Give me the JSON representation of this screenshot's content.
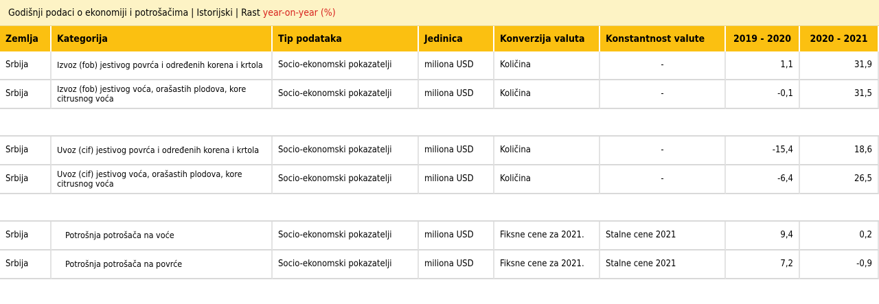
{
  "title": {
    "main": "Godišnji podaci o ekonomiji i potrošačima | Istorijski | Rast",
    "accent": "year-on-year (%)"
  },
  "colors": {
    "header_bg": "#fbc011",
    "title_bg": "#fdf3c5",
    "accent": "#d8231f"
  },
  "columns": [
    "Zemlja",
    "Kategorija",
    "Tip podataka",
    "Jedinica",
    "Konverzija valuta",
    "Konstantnost valute",
    "2019 - 2020",
    "2020 - 2021"
  ],
  "rows": [
    {
      "zemlja": "Srbija",
      "kategorija": "Izvoz (fob) jestivog povrća i određenih korena i krtola",
      "tip": "Socio-ekonomski pokazatelji",
      "jedinica": "miliona USD",
      "konverzija": "Količina",
      "konstantnost": "-",
      "y1": "1,1",
      "y2": "31,9"
    },
    {
      "zemlja": "Srbija",
      "kategorija": "Izvoz (fob) jestivog voća, orašastih plodova, kore citrusnog voća",
      "tip": "Socio-ekonomski pokazatelji",
      "jedinica": "miliona USD",
      "konverzija": "Količina",
      "konstantnost": "-",
      "y1": "-0,1",
      "y2": "31,5"
    },
    {
      "zemlja": "Srbija",
      "kategorija": "Uvoz (cif) jestivog povrća i određenih korena i krtola",
      "tip": "Socio-ekonomski pokazatelji",
      "jedinica": "miliona USD",
      "konverzija": "Količina",
      "konstantnost": "-",
      "y1": "-15,4",
      "y2": "18,6"
    },
    {
      "zemlja": "Srbija",
      "kategorija": "Uvoz (cif)  jestivog voća, orašastih plodova, kore citrusnog voća",
      "tip": "Socio-ekonomski pokazatelji",
      "jedinica": "miliona USD",
      "konverzija": "Količina",
      "konstantnost": "-",
      "y1": "-6,4",
      "y2": "26,5"
    },
    {
      "zemlja": "Srbija",
      "kategorija": "Potrošnja potrošača na voće",
      "tip": "Socio-ekonomski pokazatelji",
      "jedinica": "miliona USD",
      "konverzija": "Fiksne cene za 2021.",
      "konstantnost": "Stalne cene 2021",
      "y1": "9,4",
      "y2": "0,2"
    },
    {
      "zemlja": "Srbija",
      "kategorija": "Potrošnja potrošača na povrće",
      "tip": "Socio-ekonomski pokazatelji",
      "jedinica": "miliona USD",
      "konverzija": "Fiksne cene za 2021.",
      "konstantnost": "Stalne cene 2021",
      "y1": "7,2",
      "y2": "-0,9"
    }
  ]
}
